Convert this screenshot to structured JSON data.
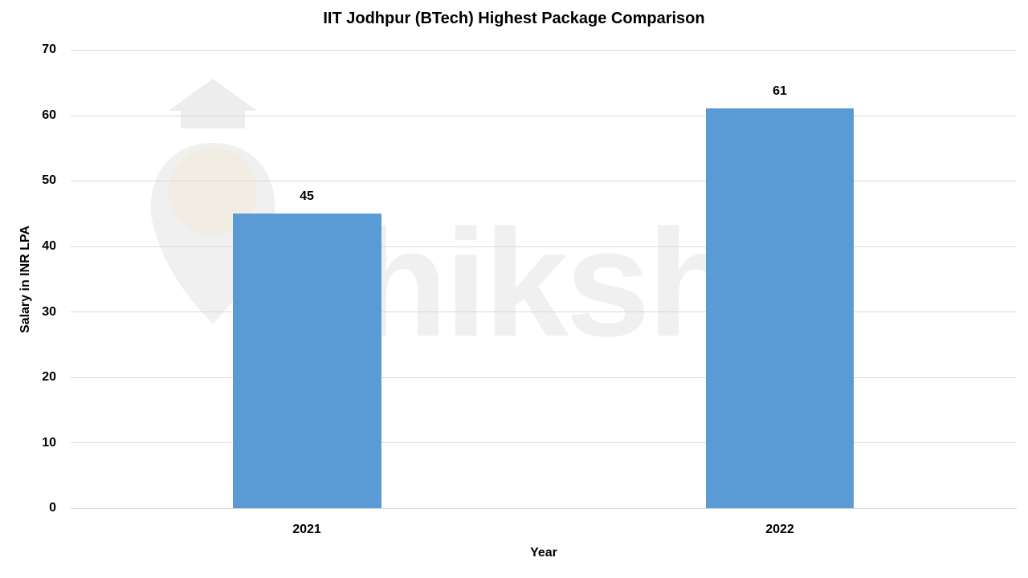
{
  "chart_data": {
    "type": "bar",
    "title": "IIT Jodhpur (BTech) Highest Package Comparison",
    "xlabel": "Year",
    "ylabel": "Salary in INR LPA",
    "categories": [
      "2021",
      "2022"
    ],
    "values": [
      45,
      61
    ],
    "data_labels": [
      "45",
      "61"
    ],
    "ylim": [
      0,
      70
    ],
    "yticks": [
      "0",
      "10",
      "20",
      "30",
      "40",
      "50",
      "60",
      "70"
    ],
    "grid": true,
    "legend": null,
    "bar_color": "#5b9bd5",
    "watermark": "shiksha"
  }
}
